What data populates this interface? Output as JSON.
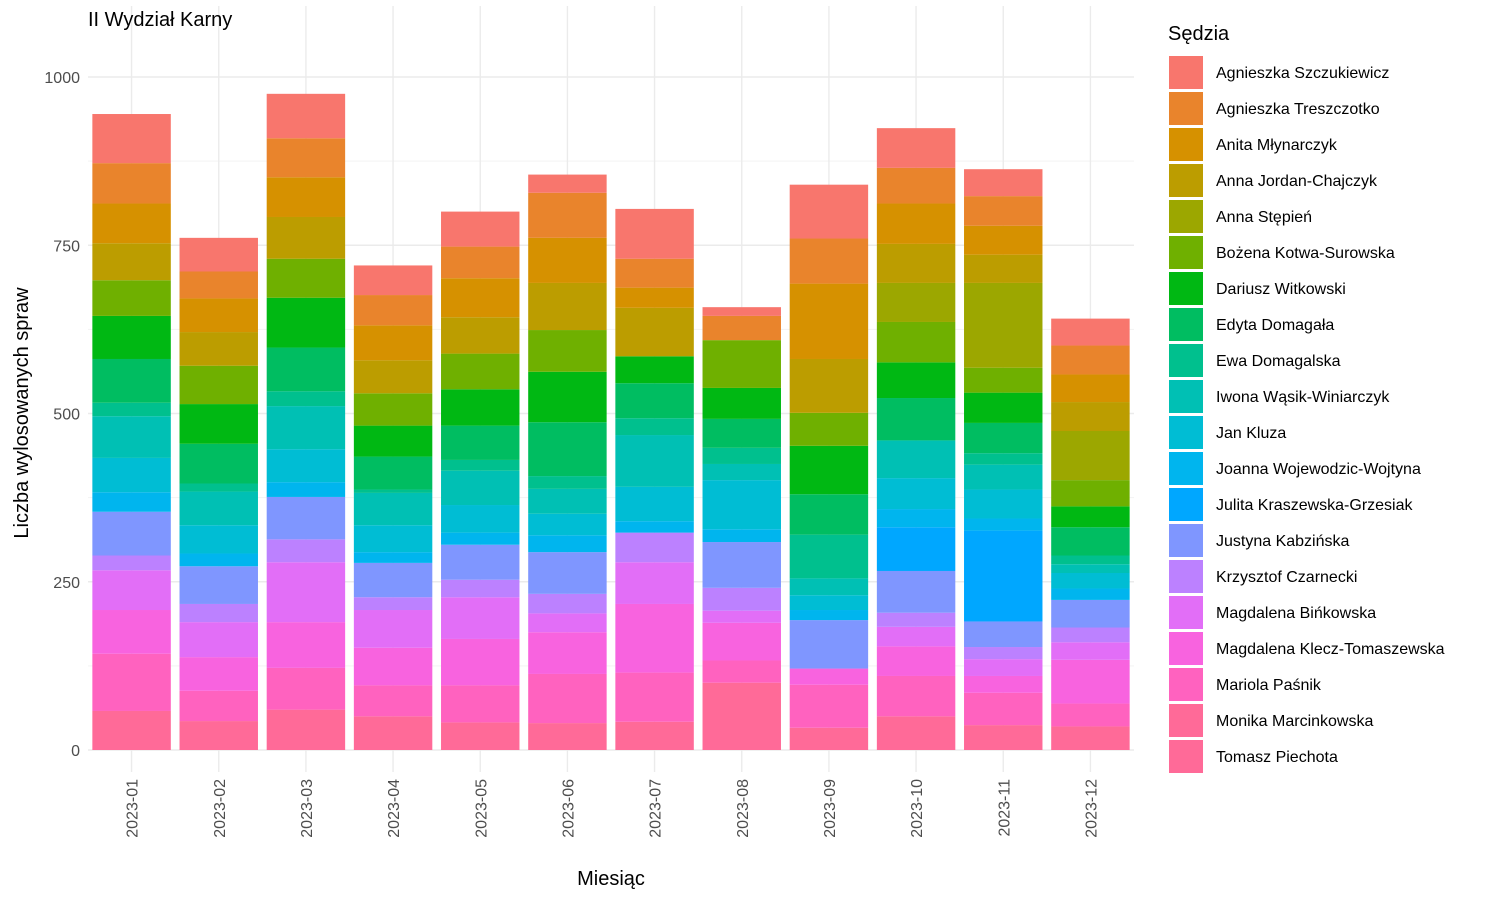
{
  "chart_data": {
    "type": "bar",
    "stacked": true,
    "title": "II Wydział Karny",
    "xlabel": "Miesiąc",
    "ylabel": "Liczba wylosowanych spraw",
    "ylim": [
      0,
      1000
    ],
    "yticks": [
      0,
      250,
      500,
      750,
      1000
    ],
    "grid": true,
    "legend_title": "Sędzia",
    "legend_position": "right",
    "categories": [
      "2023-01",
      "2023-02",
      "2023-03",
      "2023-04",
      "2023-05",
      "2023-06",
      "2023-07",
      "2023-08",
      "2023-09",
      "2023-10",
      "2023-11",
      "2023-12"
    ],
    "series": [
      {
        "name": "Agnieszka Szczukiewicz",
        "color": "#F8766D",
        "values": [
          73,
          50,
          66,
          44,
          52,
          27,
          74,
          13,
          80,
          59,
          40,
          40
        ]
      },
      {
        "name": "Agnieszka Treszczotko",
        "color": "#E9842C",
        "values": [
          60,
          40,
          58,
          45,
          47,
          67,
          43,
          36,
          67,
          53,
          44,
          43
        ]
      },
      {
        "name": "Anita Młynarczyk",
        "color": "#D69100",
        "values": [
          59,
          50,
          59,
          52,
          58,
          67,
          30,
          0,
          112,
          60,
          43,
          41
        ]
      },
      {
        "name": "Anna Jordan-Chajczyk",
        "color": "#BC9D00",
        "values": [
          55,
          50,
          62,
          49,
          54,
          70,
          72,
          0,
          80,
          58,
          42,
          43
        ]
      },
      {
        "name": "Anna Stępień",
        "color": "#9CA700",
        "values": [
          0,
          0,
          0,
          0,
          0,
          0,
          0,
          0,
          0,
          58,
          126,
          73
        ]
      },
      {
        "name": "Bożena Kotwa-Surowska",
        "color": "#6FB000",
        "values": [
          53,
          57,
          58,
          48,
          53,
          62,
          0,
          71,
          49,
          60,
          37,
          39
        ]
      },
      {
        "name": "Dariusz Witkowski",
        "color": "#00B813",
        "values": [
          64,
          59,
          74,
          46,
          54,
          75,
          40,
          46,
          72,
          53,
          45,
          31
        ]
      },
      {
        "name": "Edyta Domagała",
        "color": "#00BD61",
        "values": [
          65,
          59,
          65,
          49,
          51,
          80,
          52,
          43,
          60,
          63,
          45,
          42
        ]
      },
      {
        "name": "Ewa Domagalska",
        "color": "#00C08E",
        "values": [
          20,
          12,
          22,
          5,
          16,
          19,
          25,
          24,
          65,
          0,
          17,
          13
        ]
      },
      {
        "name": "Iwona Wąsik-Winiarczyk",
        "color": "#00C0B4",
        "values": [
          62,
          50,
          64,
          48,
          51,
          37,
          77,
          24,
          25,
          56,
          37,
          13
        ]
      },
      {
        "name": "Jan Kluza",
        "color": "#00BDD4",
        "values": [
          51,
          42,
          49,
          40,
          41,
          32,
          51,
          73,
          22,
          46,
          43,
          23
        ]
      },
      {
        "name": "Joanna Wojewodzic-Wojtyna",
        "color": "#00B5EE",
        "values": [
          29,
          19,
          22,
          16,
          18,
          25,
          17,
          19,
          15,
          27,
          18,
          17
        ]
      },
      {
        "name": "Julita Kraszewska-Grzesiak",
        "color": "#00A7FF",
        "values": [
          0,
          0,
          0,
          0,
          0,
          0,
          0,
          0,
          0,
          65,
          135,
          0
        ]
      },
      {
        "name": "Justyna Kabzińska",
        "color": "#7F96FF",
        "values": [
          65,
          56,
          63,
          51,
          52,
          62,
          0,
          68,
          72,
          62,
          38,
          41
        ]
      },
      {
        "name": "Krzysztof Czarnecki",
        "color": "#BC81FF",
        "values": [
          22,
          27,
          34,
          19,
          26,
          29,
          44,
          34,
          0,
          21,
          18,
          22
        ]
      },
      {
        "name": "Magdalena Bińkowska",
        "color": "#E26EF7",
        "values": [
          59,
          52,
          89,
          56,
          62,
          28,
          62,
          18,
          0,
          29,
          25,
          26
        ]
      },
      {
        "name": "Magdalena Klecz-Tomaszewska",
        "color": "#F863DF",
        "values": [
          65,
          50,
          68,
          56,
          69,
          62,
          102,
          56,
          24,
          44,
          25,
          65
        ]
      },
      {
        "name": "Mariola Paśnik",
        "color": "#FF62BF",
        "values": [
          85,
          45,
          62,
          46,
          55,
          73,
          73,
          33,
          64,
          60,
          48,
          34
        ]
      },
      {
        "name": "Monika Marcinkowska",
        "color": "#FF6A98",
        "values": [
          58,
          43,
          60,
          50,
          41,
          40,
          42,
          100,
          33,
          50,
          37,
          35
        ]
      },
      {
        "name": "Tomasz Piechota",
        "color": "#FF6A98",
        "values": [
          0,
          0,
          0,
          0,
          0,
          0,
          0,
          0,
          0,
          0,
          0,
          0
        ]
      }
    ]
  }
}
